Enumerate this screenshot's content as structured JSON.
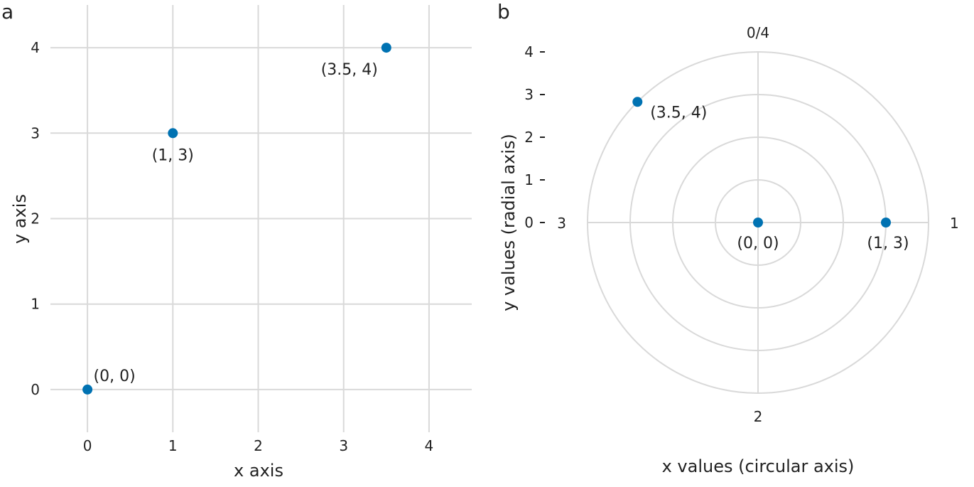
{
  "chart_data": [
    {
      "type": "scatter",
      "panel": "a",
      "title": "",
      "xlabel": "x axis",
      "ylabel": "y axis",
      "xlim": [
        -0.5,
        4.5
      ],
      "ylim": [
        -0.5,
        4.5
      ],
      "xticks": [
        0,
        1,
        2,
        3,
        4
      ],
      "yticks": [
        0,
        1,
        2,
        3,
        4
      ],
      "grid": true,
      "point_color": "#0072B2",
      "points": [
        {
          "x": 0,
          "y": 0,
          "label": "(0, 0)"
        },
        {
          "x": 1,
          "y": 3,
          "label": "(1, 3)"
        },
        {
          "x": 3.5,
          "y": 4,
          "label": "(3.5, 4)"
        }
      ]
    },
    {
      "type": "scatter",
      "coord": "polar",
      "panel": "b",
      "title": "",
      "xlabel": "x values (circular axis)",
      "ylabel": "y values (radial axis)",
      "theta_range": [
        0,
        4
      ],
      "r_range": [
        0,
        4
      ],
      "theta_ticks": [
        {
          "value": 0,
          "label": "0/4"
        },
        {
          "value": 1,
          "label": "1"
        },
        {
          "value": 2,
          "label": "2"
        },
        {
          "value": 3,
          "label": "3"
        }
      ],
      "r_ticks": [
        0,
        1,
        2,
        3,
        4
      ],
      "grid": true,
      "point_color": "#0072B2",
      "points": [
        {
          "x": 0,
          "y": 0,
          "label": "(0, 0)"
        },
        {
          "x": 1,
          "y": 3,
          "label": "(1, 3)"
        },
        {
          "x": 3.5,
          "y": 4,
          "label": "(3.5, 4)"
        }
      ]
    }
  ]
}
